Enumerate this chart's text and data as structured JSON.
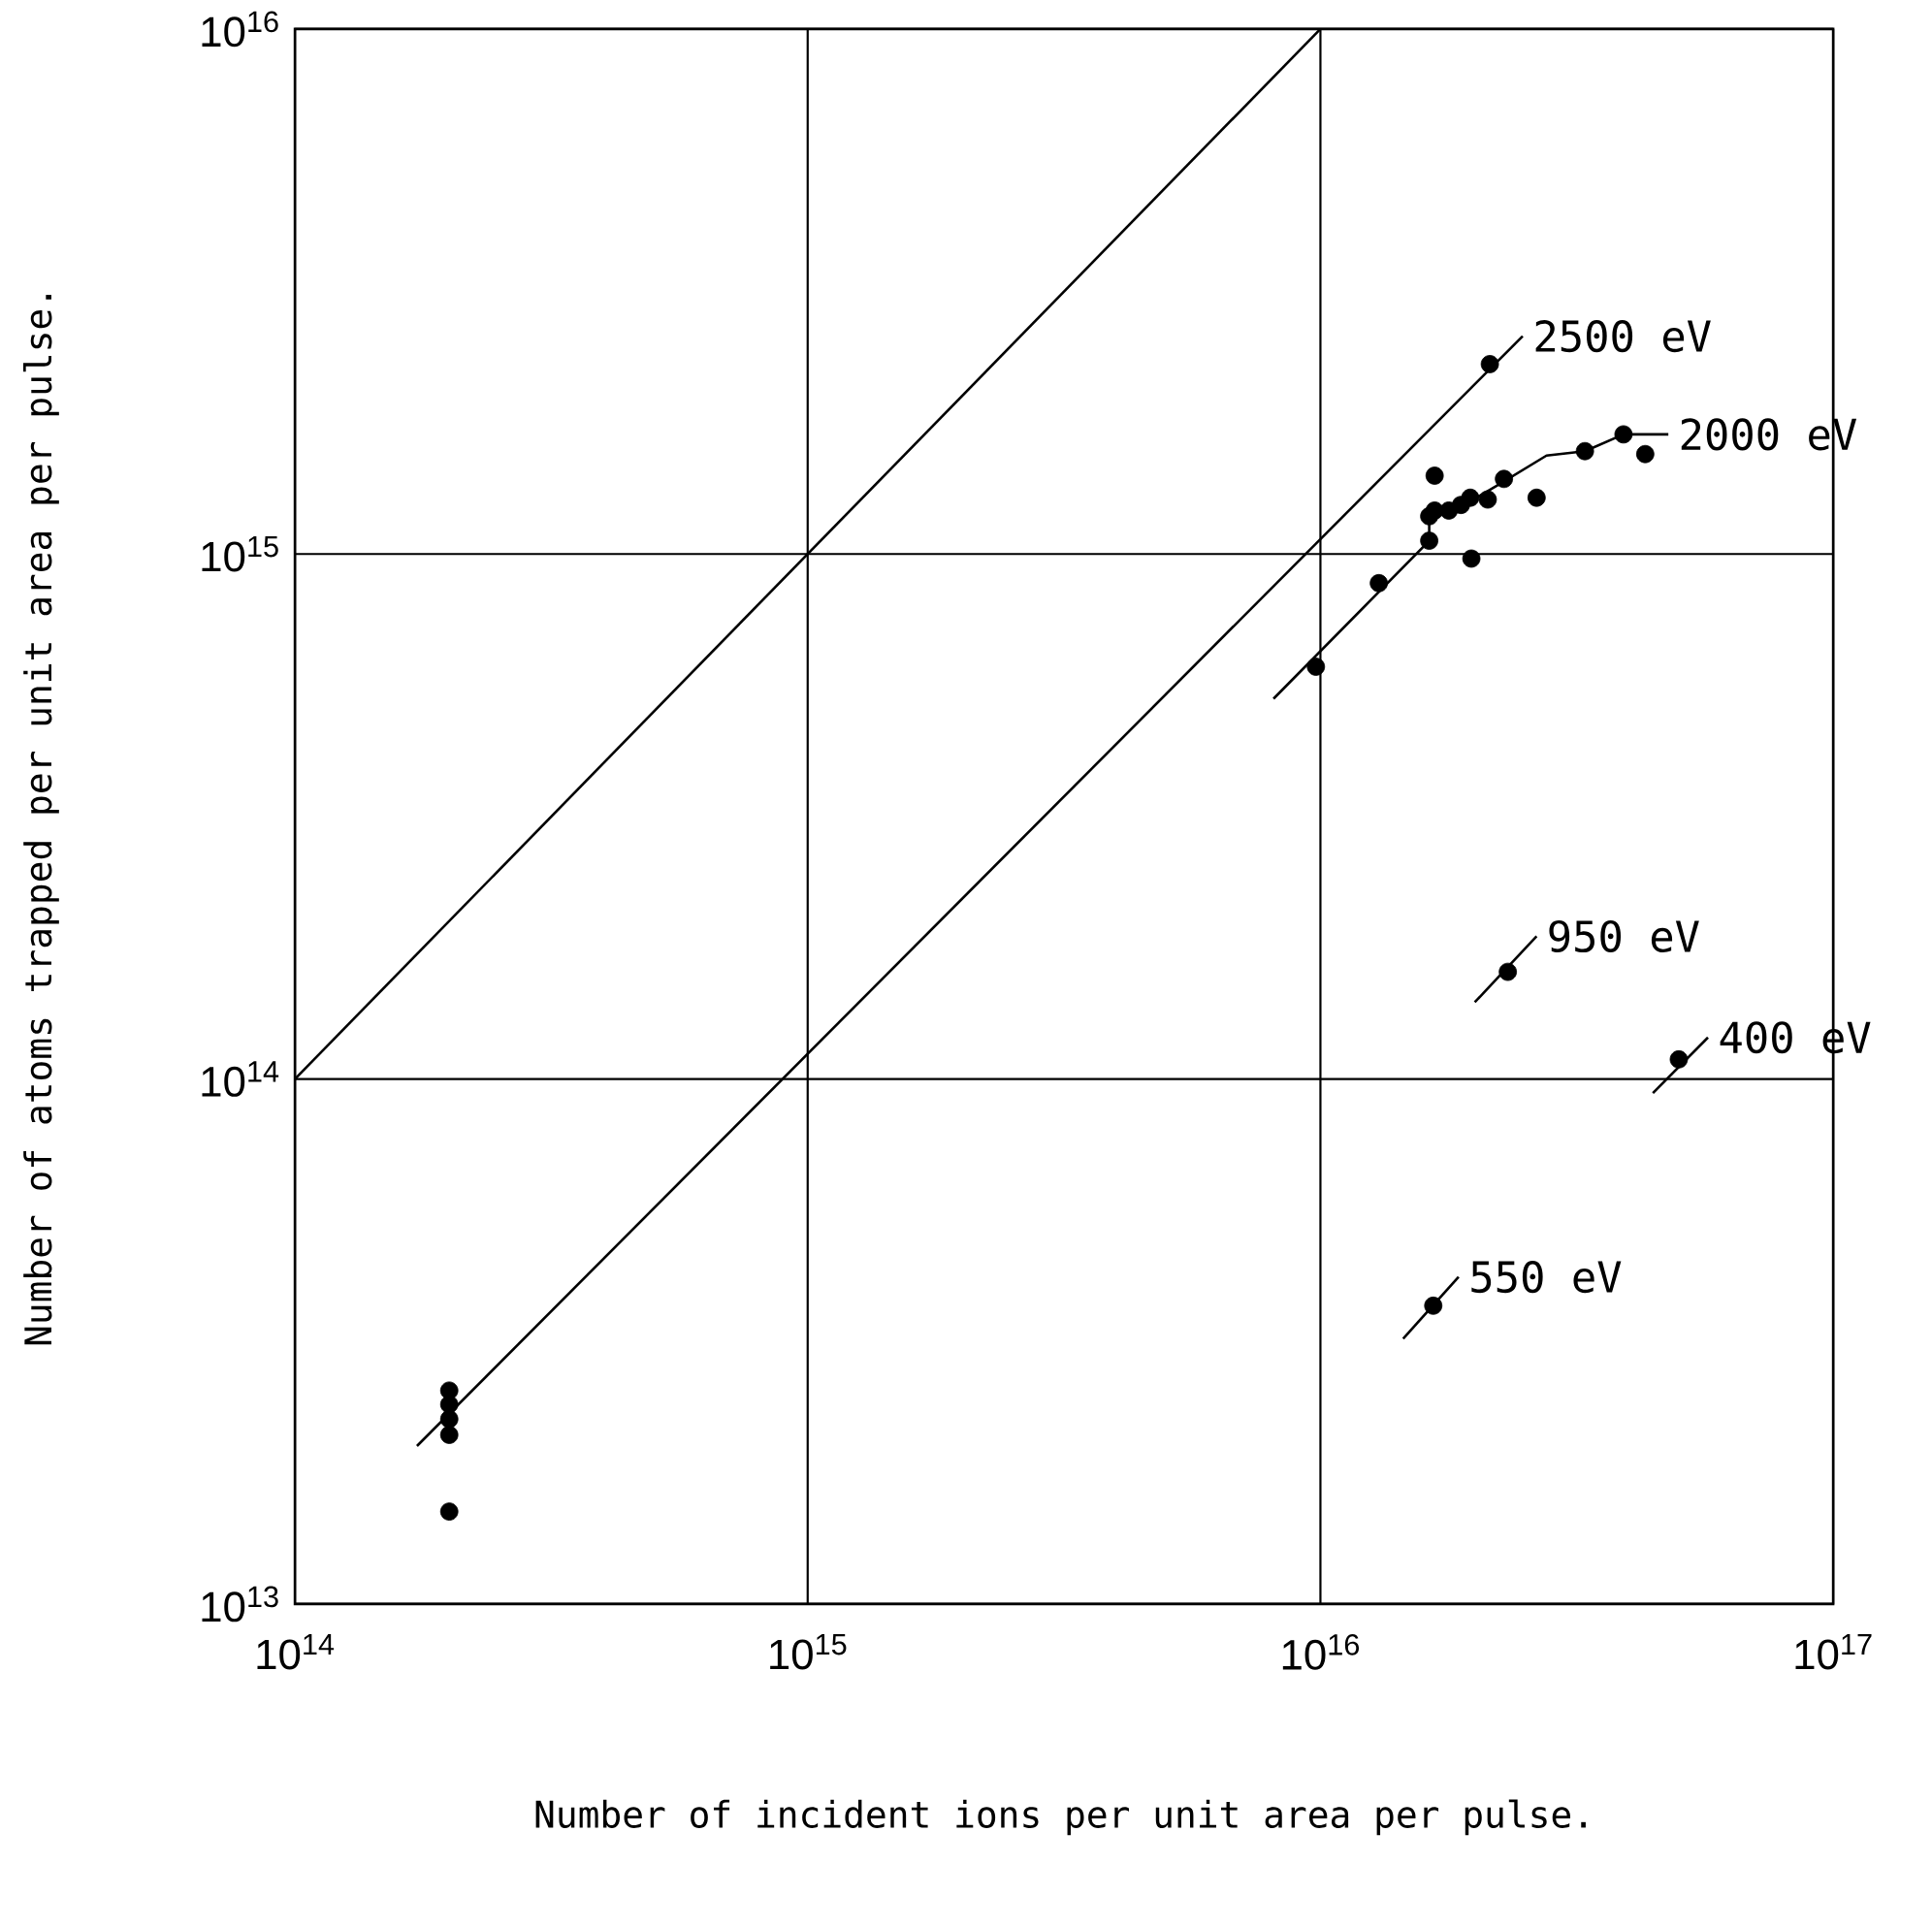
{
  "chart_data": {
    "type": "scatter",
    "xlabel": "Number of incident ions per unit area per pulse.",
    "ylabel": "Number of atoms trapped per unit area per pulse.",
    "log": "xy",
    "grid": true,
    "xlim": [
      100000000000000.0,
      1e+17
    ],
    "ylim": [
      10000000000000.0,
      1e+16
    ],
    "xticks": [
      {
        "value": 100000000000000.0,
        "label": "10$^{14}$"
      },
      {
        "value": 1000000000000000.0,
        "label": "10$^{15}$"
      },
      {
        "value": 1e+16,
        "label": "10$^{16}$"
      },
      {
        "value": 1e+17,
        "label": "10$^{17}$"
      }
    ],
    "yticks": [
      {
        "value": 10000000000000.0,
        "label": "10$^{13}$"
      },
      {
        "value": 100000000000000.0,
        "label": "10$^{14}$"
      },
      {
        "value": 1000000000000000.0,
        "label": "10$^{15}$"
      },
      {
        "value": 1e+16,
        "label": "10$^{16}$"
      }
    ],
    "series": [
      {
        "type": "line",
        "color": "#000000",
        "x": [
          100000000000000.0,
          1e+16
        ],
        "values": [
          100000000000000.0,
          1e+16
        ]
      },
      {
        "type": "line",
        "color": "#000000",
        "x": [
          173000000000000.0,
          2.48e+16
        ],
        "values": [
          20000000000000.0,
          2600000000000000.0
        ]
      },
      {
        "marker": "circle",
        "color": "#000000",
        "x": [
          200000000000000.0,
          200000000000000.0,
          200000000000000.0,
          200000000000000.0,
          200000000000000.0,
          2.14e+16
        ],
        "values": [
          25500000000000.0,
          24000000000000.0,
          22500000000000.0,
          21000000000000.0,
          15000000000000.0,
          2300000000000000.0
        ]
      },
      {
        "type": "line",
        "color": "#000000",
        "x": [
          8100000000000000.0,
          1.63e+16,
          1.63e+16,
          1.88e+16,
          2.24e+16,
          2.76e+16,
          3.28e+16,
          3.9e+16,
          4.77e+16
        ],
        "values": [
          530000000000000.0,
          1060000000000000.0,
          1180000000000000.0,
          1230000000000000.0,
          1360000000000000.0,
          1540000000000000.0,
          1570000000000000.0,
          1690000000000000.0,
          1690000000000000.0
        ]
      },
      {
        "marker": "circle",
        "color": "#000000",
        "x": [
          9800000000000000.0,
          1.3e+16,
          1.63e+16,
          1.63e+16,
          1.67e+16,
          1.67e+16,
          1.78e+16,
          1.88e+16,
          1.96e+16,
          2.12e+16,
          1.97e+16,
          2.28e+16,
          2.64e+16,
          3.28e+16,
          3.9e+16,
          4.3e+16
        ],
        "values": [
          610000000000000.0,
          880000000000000.0,
          1060000000000000.0,
          1180000000000000.0,
          1210000000000000.0,
          1410000000000000.0,
          1210000000000000.0,
          1240000000000000.0,
          1280000000000000.0,
          1270000000000000.0,
          980000000000000.0,
          1390000000000000.0,
          1280000000000000.0,
          1570000000000000.0,
          1690000000000000.0,
          1550000000000000.0
        ]
      },
      {
        "type": "line",
        "color": "#000000",
        "x": [
          2e+16,
          2.64e+16
        ],
        "values": [
          140000000000000.0,
          187000000000000.0
        ]
      },
      {
        "marker": "circle",
        "color": "#000000",
        "x": [
          2.32e+16
        ],
        "values": [
          160000000000000.0
        ]
      },
      {
        "type": "line",
        "color": "#000000",
        "x": [
          4.45e+16,
          5.7e+16
        ],
        "values": [
          94000000000000.0,
          120000000000000.0
        ]
      },
      {
        "marker": "circle",
        "color": "#000000",
        "x": [
          5e+16
        ],
        "values": [
          109000000000000.0
        ]
      },
      {
        "type": "line",
        "color": "#000000",
        "x": [
          1.45e+16,
          1.86e+16
        ],
        "values": [
          32000000000000.0,
          42000000000000.0
        ]
      },
      {
        "marker": "circle",
        "color": "#000000",
        "x": [
          1.66e+16
        ],
        "values": [
          37000000000000.0
        ]
      }
    ],
    "annotations": [
      {
        "text": "2500 eV",
        "x": 2.48e+16,
        "y": 2600000000000000.0
      },
      {
        "text": "2000 eV",
        "x": 4.77e+16,
        "y": 1690000000000000.0
      },
      {
        "text": "950 eV",
        "x": 2.64e+16,
        "y": 187000000000000.0
      },
      {
        "text": "400 eV",
        "x": 5.7e+16,
        "y": 120000000000000.0
      },
      {
        "text": "550 eV",
        "x": 1.86e+16,
        "y": 42000000000000.0
      }
    ]
  }
}
